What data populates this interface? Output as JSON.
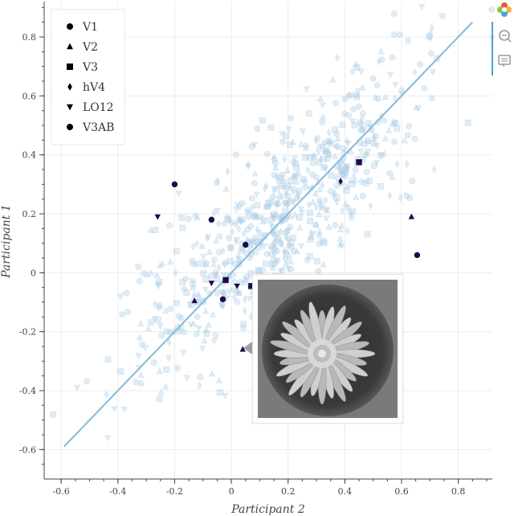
{
  "chart_data": {
    "type": "scatter",
    "xlabel": "Participant 2",
    "ylabel": "Participant 1",
    "xlim": [
      -0.66,
      0.92
    ],
    "ylim": [
      -0.7,
      0.92
    ],
    "xticks": [
      -0.6,
      -0.4,
      -0.2,
      0,
      0.2,
      0.4,
      0.6,
      0.8
    ],
    "xtick_labels": [
      "-0.6",
      "-0.4",
      "-0.2",
      "0",
      "0.2",
      "0.4",
      "0.6",
      "0.8"
    ],
    "yticks": [
      -0.6,
      -0.4,
      -0.2,
      0,
      0.2,
      0.4,
      0.6,
      0.8
    ],
    "ytick_labels": [
      "-0.6",
      "-0.4",
      "-0.2",
      "0",
      "0.2",
      "0.4",
      "0.6",
      "0.8"
    ],
    "grid": true,
    "legend_position": "top-left",
    "legend": [
      {
        "label": "V1",
        "marker": "circle"
      },
      {
        "label": "V2",
        "marker": "triangle"
      },
      {
        "label": "V3",
        "marker": "square"
      },
      {
        "label": "hV4",
        "marker": "diamond"
      },
      {
        "label": "LO12",
        "marker": "inverted_triangle"
      },
      {
        "label": "V3AB",
        "marker": "circle"
      }
    ],
    "fit_line": {
      "x": [
        -0.59,
        0.85
      ],
      "y": [
        -0.59,
        0.85
      ],
      "color": "#8cbedc"
    },
    "background_points_color": "#a9cbe6",
    "background_points_note_count": 700,
    "highlighted_points": [
      {
        "x": -0.2,
        "y": 0.3,
        "marker": "circle"
      },
      {
        "x": -0.26,
        "y": 0.19,
        "marker": "inverted_triangle"
      },
      {
        "x": -0.07,
        "y": 0.18,
        "marker": "circle"
      },
      {
        "x": 0.05,
        "y": 0.095,
        "marker": "circle"
      },
      {
        "x": 0.45,
        "y": 0.375,
        "marker": "square"
      },
      {
        "x": 0.385,
        "y": 0.31,
        "marker": "diamond"
      },
      {
        "x": 0.635,
        "y": 0.19,
        "marker": "triangle"
      },
      {
        "x": 0.655,
        "y": 0.06,
        "marker": "circle"
      },
      {
        "x": -0.07,
        "y": -0.035,
        "marker": "inverted_triangle"
      },
      {
        "x": -0.02,
        "y": -0.025,
        "marker": "square"
      },
      {
        "x": 0.02,
        "y": -0.045,
        "marker": "inverted_triangle"
      },
      {
        "x": 0.07,
        "y": -0.045,
        "marker": "square"
      },
      {
        "x": -0.13,
        "y": -0.095,
        "marker": "triangle"
      },
      {
        "x": -0.03,
        "y": -0.09,
        "marker": "circle"
      },
      {
        "x": 0.04,
        "y": -0.26,
        "marker": "triangle"
      }
    ],
    "highlight_color": "#1d0b4a"
  },
  "tooltip": {
    "image_label": "flower-image"
  }
}
